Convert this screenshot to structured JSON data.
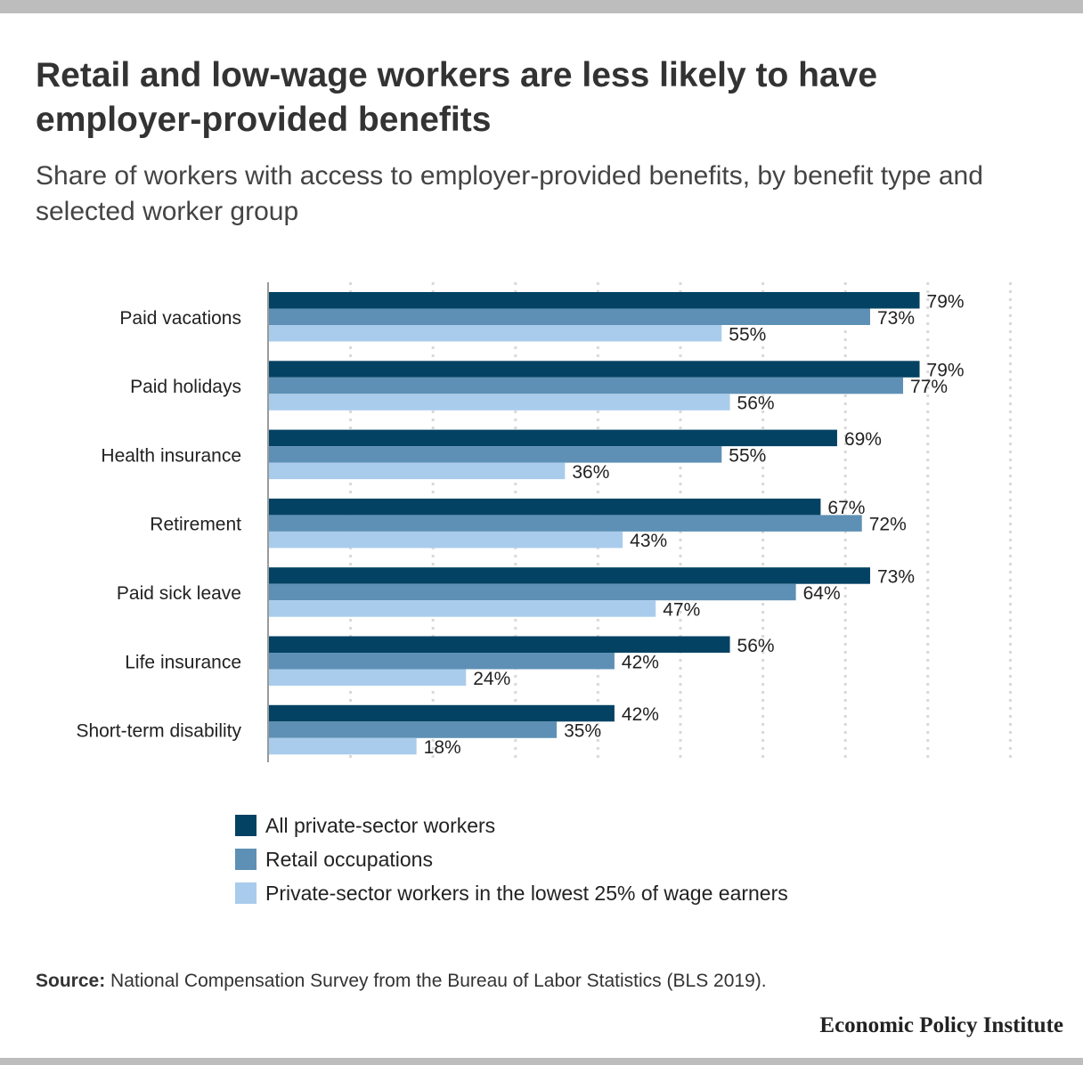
{
  "header": {
    "title": "Retail and low-wage workers are less likely to have employer-provided benefits",
    "subtitle": "Share of workers with access to employer-provided benefits, by benefit type and selected worker group"
  },
  "chart_data": {
    "type": "bar",
    "orientation": "horizontal",
    "categories": [
      "Paid vacations",
      "Paid holidays",
      "Health insurance",
      "Retirement",
      "Paid sick leave",
      "Life insurance",
      "Short-term disability"
    ],
    "series": [
      {
        "name": "All private-sector workers",
        "color": "#034263",
        "values": [
          79,
          79,
          69,
          67,
          73,
          56,
          42
        ]
      },
      {
        "name": "Retail occupations",
        "color": "#5e90b5",
        "values": [
          73,
          77,
          55,
          72,
          64,
          42,
          35
        ]
      },
      {
        "name": "Private-sector workers in the lowest 25% of wage earners",
        "color": "#a9ccec",
        "values": [
          55,
          56,
          36,
          43,
          47,
          24,
          18
        ]
      }
    ],
    "value_suffix": "%",
    "xlim": [
      0,
      90
    ],
    "grid": true,
    "grid_style": "dotted-vertical",
    "legend_position": "bottom"
  },
  "source": {
    "label": "Source:",
    "text": "National Compensation Survey from the Bureau of Labor Statistics (BLS 2019)."
  },
  "footer": {
    "logo_text": "Economic Policy Institute"
  }
}
